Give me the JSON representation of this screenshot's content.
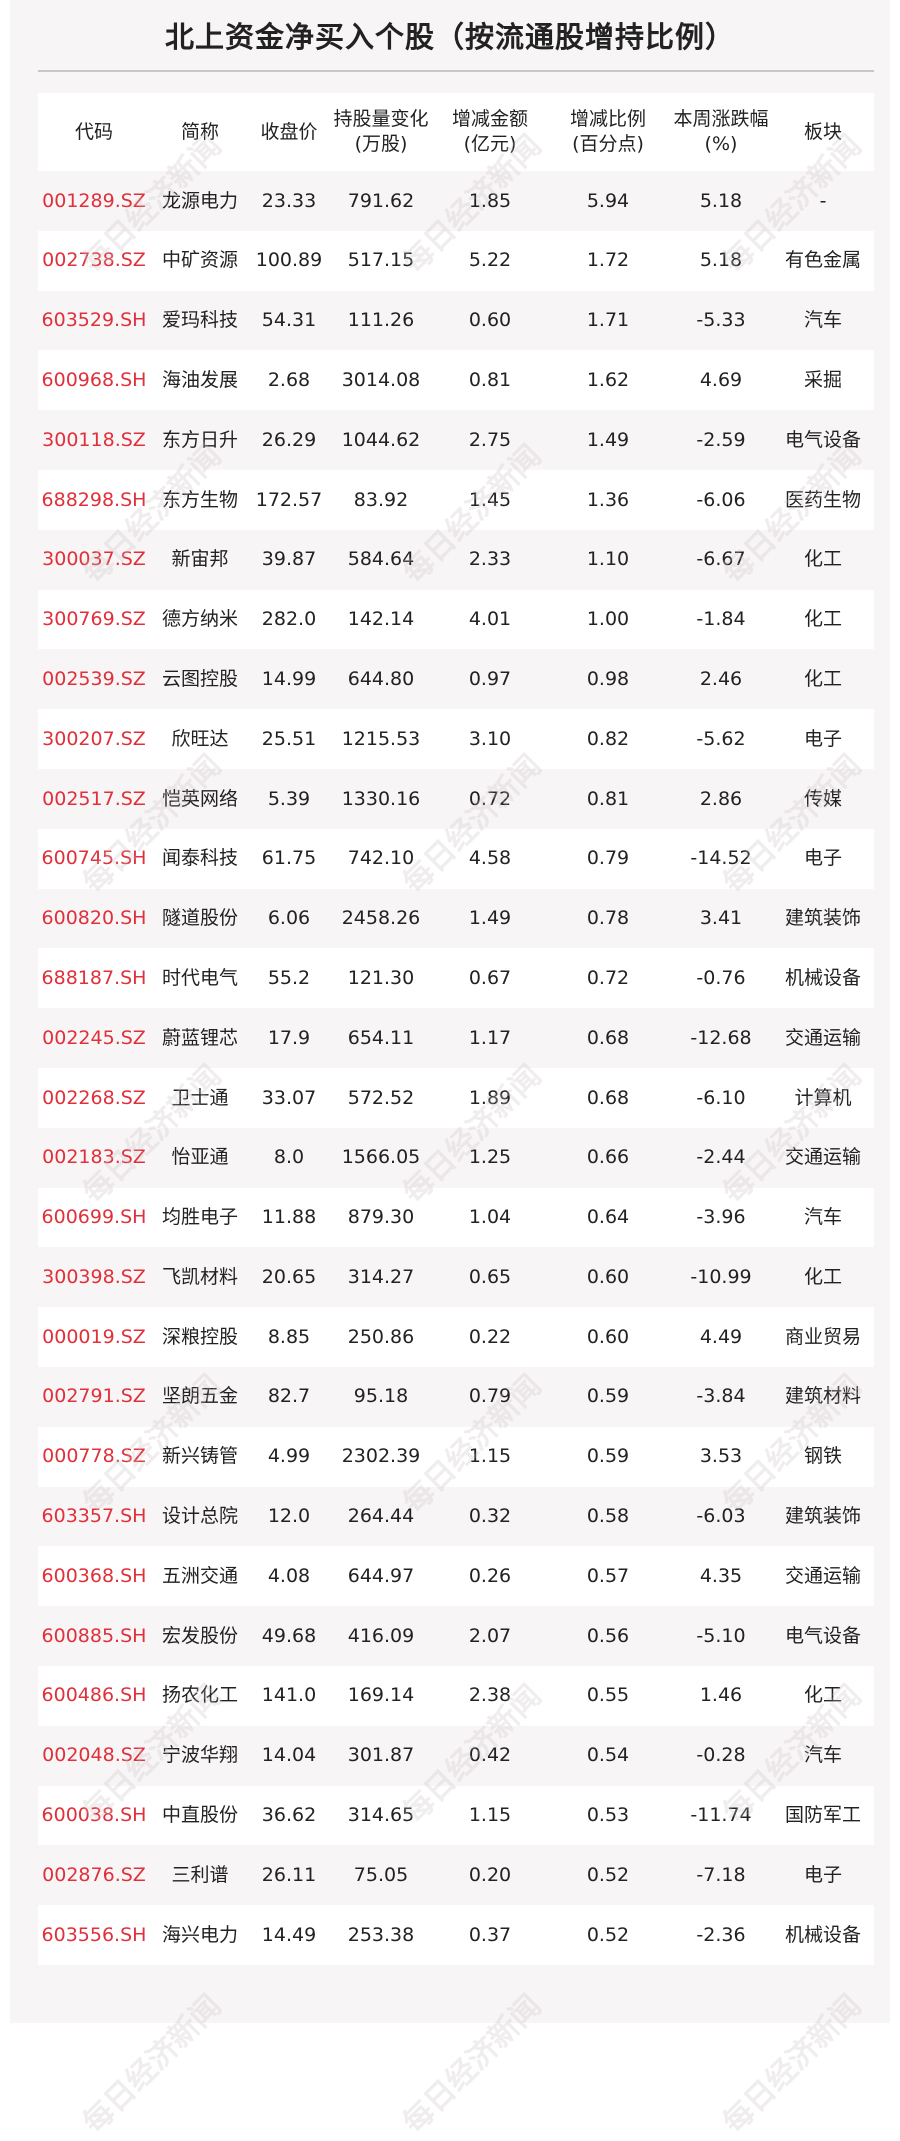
{
  "title": "北上资金净买入个股（按流通股增持比例）",
  "watermark": "每日经济新闻",
  "colors": {
    "code": "#e0303a",
    "background": "#f8f5f6",
    "row_alt": "#ffffff"
  },
  "headers": [
    {
      "line1": "代码",
      "line2": ""
    },
    {
      "line1": "简称",
      "line2": ""
    },
    {
      "line1": "收盘价",
      "line2": ""
    },
    {
      "line1": "持股量变化",
      "line2": "(万股)"
    },
    {
      "line1": "增减金额",
      "line2": "(亿元)"
    },
    {
      "line1": "增减比例",
      "line2": "(百分点)"
    },
    {
      "line1": "本周涨跌幅",
      "line2": "(%)"
    },
    {
      "line1": "板块",
      "line2": ""
    }
  ],
  "rows": [
    [
      "001289.SZ",
      "龙源电力",
      "23.33",
      "791.62",
      "1.85",
      "5.94",
      "5.18",
      "-"
    ],
    [
      "002738.SZ",
      "中矿资源",
      "100.89",
      "517.15",
      "5.22",
      "1.72",
      "5.18",
      "有色金属"
    ],
    [
      "603529.SH",
      "爱玛科技",
      "54.31",
      "111.26",
      "0.60",
      "1.71",
      "-5.33",
      "汽车"
    ],
    [
      "600968.SH",
      "海油发展",
      "2.68",
      "3014.08",
      "0.81",
      "1.62",
      "4.69",
      "采掘"
    ],
    [
      "300118.SZ",
      "东方日升",
      "26.29",
      "1044.62",
      "2.75",
      "1.49",
      "-2.59",
      "电气设备"
    ],
    [
      "688298.SH",
      "东方生物",
      "172.57",
      "83.92",
      "1.45",
      "1.36",
      "-6.06",
      "医药生物"
    ],
    [
      "300037.SZ",
      "新宙邦",
      "39.87",
      "584.64",
      "2.33",
      "1.10",
      "-6.67",
      "化工"
    ],
    [
      "300769.SZ",
      "德方纳米",
      "282.0",
      "142.14",
      "4.01",
      "1.00",
      "-1.84",
      "化工"
    ],
    [
      "002539.SZ",
      "云图控股",
      "14.99",
      "644.80",
      "0.97",
      "0.98",
      "2.46",
      "化工"
    ],
    [
      "300207.SZ",
      "欣旺达",
      "25.51",
      "1215.53",
      "3.10",
      "0.82",
      "-5.62",
      "电子"
    ],
    [
      "002517.SZ",
      "恺英网络",
      "5.39",
      "1330.16",
      "0.72",
      "0.81",
      "2.86",
      "传媒"
    ],
    [
      "600745.SH",
      "闻泰科技",
      "61.75",
      "742.10",
      "4.58",
      "0.79",
      "-14.52",
      "电子"
    ],
    [
      "600820.SH",
      "隧道股份",
      "6.06",
      "2458.26",
      "1.49",
      "0.78",
      "3.41",
      "建筑装饰"
    ],
    [
      "688187.SH",
      "时代电气",
      "55.2",
      "121.30",
      "0.67",
      "0.72",
      "-0.76",
      "机械设备"
    ],
    [
      "002245.SZ",
      "蔚蓝锂芯",
      "17.9",
      "654.11",
      "1.17",
      "0.68",
      "-12.68",
      "交通运输"
    ],
    [
      "002268.SZ",
      "卫士通",
      "33.07",
      "572.52",
      "1.89",
      "0.68",
      "-6.10",
      "计算机"
    ],
    [
      "002183.SZ",
      "怡亚通",
      "8.0",
      "1566.05",
      "1.25",
      "0.66",
      "-2.44",
      "交通运输"
    ],
    [
      "600699.SH",
      "均胜电子",
      "11.88",
      "879.30",
      "1.04",
      "0.64",
      "-3.96",
      "汽车"
    ],
    [
      "300398.SZ",
      "飞凯材料",
      "20.65",
      "314.27",
      "0.65",
      "0.60",
      "-10.99",
      "化工"
    ],
    [
      "000019.SZ",
      "深粮控股",
      "8.85",
      "250.86",
      "0.22",
      "0.60",
      "4.49",
      "商业贸易"
    ],
    [
      "002791.SZ",
      "坚朗五金",
      "82.7",
      "95.18",
      "0.79",
      "0.59",
      "-3.84",
      "建筑材料"
    ],
    [
      "000778.SZ",
      "新兴铸管",
      "4.99",
      "2302.39",
      "1.15",
      "0.59",
      "3.53",
      "钢铁"
    ],
    [
      "603357.SH",
      "设计总院",
      "12.0",
      "264.44",
      "0.32",
      "0.58",
      "-6.03",
      "建筑装饰"
    ],
    [
      "600368.SH",
      "五洲交通",
      "4.08",
      "644.97",
      "0.26",
      "0.57",
      "4.35",
      "交通运输"
    ],
    [
      "600885.SH",
      "宏发股份",
      "49.68",
      "416.09",
      "2.07",
      "0.56",
      "-5.10",
      "电气设备"
    ],
    [
      "600486.SH",
      "扬农化工",
      "141.0",
      "169.14",
      "2.38",
      "0.55",
      "1.46",
      "化工"
    ],
    [
      "002048.SZ",
      "宁波华翔",
      "14.04",
      "301.87",
      "0.42",
      "0.54",
      "-0.28",
      "汽车"
    ],
    [
      "600038.SH",
      "中直股份",
      "36.62",
      "314.65",
      "1.15",
      "0.53",
      "-11.74",
      "国防军工"
    ],
    [
      "002876.SZ",
      "三利谱",
      "26.11",
      "75.05",
      "0.20",
      "0.52",
      "-7.18",
      "电子"
    ],
    [
      "603556.SH",
      "海兴电力",
      "14.49",
      "253.38",
      "0.37",
      "0.52",
      "-2.36",
      "机械设备"
    ]
  ]
}
